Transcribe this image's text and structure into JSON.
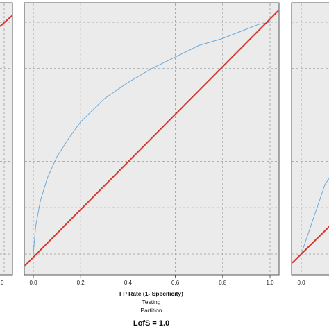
{
  "chart_data": [
    {
      "type": "line",
      "position": "left (cropped)",
      "x_tick_labels": [
        "0"
      ],
      "xlim": [
        0,
        1
      ],
      "ylim": [
        0,
        1
      ],
      "series": [
        {
          "role": "diagonal",
          "color": "#d9342b",
          "x": [
            0,
            1
          ],
          "y": [
            0,
            1
          ]
        }
      ]
    },
    {
      "type": "line",
      "position": "center",
      "x_tick_labels": [
        "0.0",
        "0.2",
        "0.4",
        "0.6",
        "0.8",
        "1.0"
      ],
      "xlabel": "FP Rate (1- Specificity)",
      "subtitle_lines": [
        "Testing",
        "Partition"
      ],
      "xlim": [
        0,
        1
      ],
      "ylim": [
        0,
        1
      ],
      "grid": true,
      "series": [
        {
          "role": "roc",
          "color": "#6fa8d4",
          "x": [
            0.0,
            0.01,
            0.03,
            0.06,
            0.1,
            0.15,
            0.2,
            0.25,
            0.3,
            0.4,
            0.5,
            0.6,
            0.7,
            0.8,
            0.9,
            0.95,
            1.0
          ],
          "y": [
            0.0,
            0.12,
            0.23,
            0.33,
            0.42,
            0.5,
            0.57,
            0.62,
            0.67,
            0.74,
            0.8,
            0.85,
            0.9,
            0.93,
            0.97,
            0.99,
            1.0
          ]
        },
        {
          "role": "diagonal",
          "color": "#d9342b",
          "x": [
            -0.05,
            1.05
          ],
          "y": [
            -0.05,
            1.05
          ]
        }
      ]
    },
    {
      "type": "line",
      "position": "right (cropped)",
      "x_tick_labels": [
        "0.0"
      ],
      "xlim": [
        0,
        1
      ],
      "ylim": [
        0,
        1
      ],
      "series": [
        {
          "role": "roc",
          "color": "#6fa8d4",
          "x": [
            0.0,
            0.1,
            0.2
          ],
          "y": [
            0.0,
            0.3,
            0.45
          ]
        },
        {
          "role": "diagonal",
          "color": "#d9342b",
          "x": [
            -0.05,
            1.05
          ],
          "y": [
            -0.05,
            1.05
          ]
        }
      ]
    }
  ],
  "footer_label": "LofS = 1.0",
  "colors": {
    "panel_bg": "#ebebeb",
    "grid": "#9a9a9a",
    "frame": "#555555",
    "roc": "#6fa8d4",
    "diagonal": "#d9342b"
  }
}
